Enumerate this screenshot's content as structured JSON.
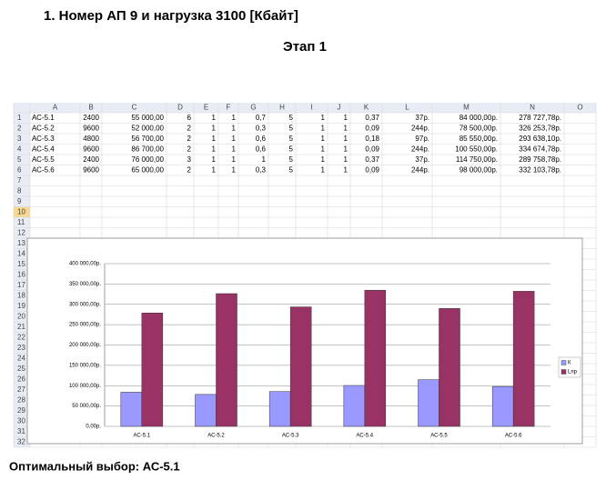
{
  "header": {
    "title": "1.  Номер АП 9 и нагрузка 3100 [Кбайт]",
    "stage": "Этап 1"
  },
  "sheet": {
    "columns": [
      "A",
      "B",
      "C",
      "D",
      "E",
      "F",
      "G",
      "H",
      "I",
      "J",
      "K",
      "L",
      "M",
      "N",
      "O"
    ],
    "row_numbers": [
      1,
      2,
      3,
      4,
      5,
      6,
      7,
      8,
      9,
      10,
      11,
      12,
      13,
      14,
      15,
      16,
      17,
      18,
      19,
      20,
      21,
      22,
      23,
      24,
      25,
      26,
      27,
      28,
      29,
      30,
      31,
      32
    ],
    "rows": [
      [
        "АС-5.1",
        "2400",
        "55 000,00",
        "6",
        "1",
        "1",
        "0,7",
        "5",
        "1",
        "1",
        "0,37",
        "37р.",
        "84 000,00р.",
        "278 727,78р."
      ],
      [
        "АС-5.2",
        "9600",
        "52 000,00",
        "2",
        "1",
        "1",
        "0,3",
        "5",
        "1",
        "1",
        "0,09",
        "244р.",
        "78 500,00р.",
        "326 253,78р."
      ],
      [
        "АС-5.3",
        "4800",
        "56 700,00",
        "2",
        "1",
        "1",
        "0,6",
        "5",
        "1",
        "1",
        "0,18",
        "97р.",
        "85 550,00р.",
        "293 638,10р."
      ],
      [
        "АС-5.4",
        "9600",
        "86 700,00",
        "2",
        "1",
        "1",
        "0,6",
        "5",
        "1",
        "1",
        "0,09",
        "244р.",
        "100 550,00р.",
        "334 674,78р."
      ],
      [
        "АС-5.5",
        "2400",
        "76 000,00",
        "3",
        "1",
        "1",
        "1",
        "5",
        "1",
        "1",
        "0,37",
        "37р.",
        "114 750,00р.",
        "289 758,78р."
      ],
      [
        "АС-5.6",
        "9600",
        "65 000,00",
        "2",
        "1",
        "1",
        "0,3",
        "5",
        "1",
        "1",
        "0,09",
        "244р.",
        "98 000,00р.",
        "332 103,78р."
      ]
    ]
  },
  "chart": {
    "type": "bar",
    "categories": [
      "АС-5.1",
      "АС-5.2",
      "АС-5.3",
      "АС-5.4",
      "АС-5.5",
      "АС-5.6"
    ],
    "series": [
      {
        "name": "К",
        "color": "#9999ff",
        "values": [
          84000,
          78500,
          85550,
          100550,
          114750,
          98000
        ]
      },
      {
        "name": "Lпр",
        "color": "#993366",
        "values": [
          278727.78,
          326253.78,
          293638.1,
          334674.78,
          289758.78,
          332103.78
        ]
      }
    ],
    "ylim": [
      0,
      400000
    ],
    "yticks": [
      {
        "value": 0,
        "label": "0,00р."
      },
      {
        "value": 50000,
        "label": "50 000,00р."
      },
      {
        "value": 100000,
        "label": "100 000,00р."
      },
      {
        "value": 150000,
        "label": "150 000,00р."
      },
      {
        "value": 200000,
        "label": "200 000,00р."
      },
      {
        "value": 250000,
        "label": "250 000,00р."
      },
      {
        "value": 300000,
        "label": "300 000,00р."
      },
      {
        "value": 350000,
        "label": "350 000,00р."
      },
      {
        "value": 400000,
        "label": "400 000,00р."
      }
    ],
    "grid": true,
    "legend": "right"
  },
  "footer": {
    "text": "Оптимальный выбор: АС-5.1"
  }
}
